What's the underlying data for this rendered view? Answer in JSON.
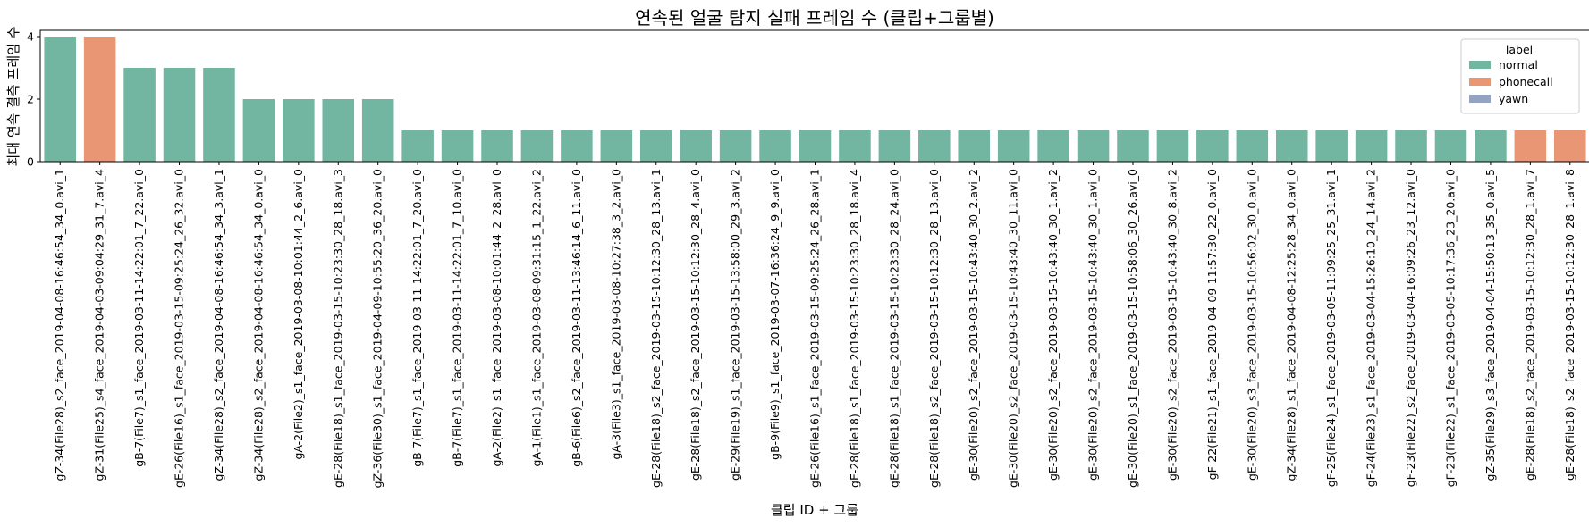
{
  "chart_data": {
    "type": "bar",
    "title": "연속된 얼굴 탐지 실패 프레임 수 (클립+그룹별)",
    "xlabel": "클립 ID + 그룹",
    "ylabel": "최대 연속 결측 프레임 수",
    "ylim": [
      0,
      4.2
    ],
    "yticks": [
      0,
      2,
      4
    ],
    "grid": false,
    "legend": {
      "title": "label",
      "placement": "top-right",
      "entries": [
        {
          "name": "normal",
          "color": "#72b6a1"
        },
        {
          "name": "phonecall",
          "color": "#e99675"
        },
        {
          "name": "yawn",
          "color": "#95a3c3"
        }
      ]
    },
    "categories": [
      "gZ-34(File28)_s2_face_2019-04-08-16:46:54_34_0.avi_1",
      "gZ-31(File25)_s4_face_2019-04-03-09:04:29_31_7.avi_4",
      "gB-7(File7)_s1_face_2019-03-11-14:22:01_7_22.avi_0",
      "gE-26(File16)_s1_face_2019-03-15-09:25:24_26_32.avi_0",
      "gZ-34(File28)_s2_face_2019-04-08-16:46:54_34_3.avi_1",
      "gZ-34(File28)_s2_face_2019-04-08-16:46:54_34_0.avi_0",
      "gA-2(File2)_s1_face_2019-03-08-10:01:44_2_6.avi_0",
      "gE-28(File18)_s1_face_2019-03-15-10:23:30_28_18.avi_3",
      "gZ-36(File30)_s1_face_2019-04-09-10:55:20_36_20.avi_0",
      "gB-7(File7)_s1_face_2019-03-11-14:22:01_7_20.avi_0",
      "gB-7(File7)_s1_face_2019-03-11-14:22:01_7_10.avi_0",
      "gA-2(File2)_s1_face_2019-03-08-10:01:44_2_28.avi_0",
      "gA-1(File1)_s1_face_2019-03-08-09:31:15_1_22.avi_2",
      "gB-6(File6)_s2_face_2019-03-11-13:46:14_6_11.avi_0",
      "gA-3(File3)_s1_face_2019-03-08-10:27:38_3_2.avi_0",
      "gE-28(File18)_s2_face_2019-03-15-10:12:30_28_13.avi_1",
      "gE-28(File18)_s2_face_2019-03-15-10:12:30_28_4.avi_0",
      "gE-29(File19)_s1_face_2019-03-15-13:58:00_29_3.avi_2",
      "gB-9(File9)_s1_face_2019-03-07-16:36:24_9_9.avi_0",
      "gE-26(File16)_s1_face_2019-03-15-09:25:24_26_28.avi_1",
      "gE-28(File18)_s1_face_2019-03-15-10:23:30_28_18.avi_4",
      "gE-28(File18)_s1_face_2019-03-15-10:23:30_28_24.avi_0",
      "gE-28(File18)_s2_face_2019-03-15-10:12:30_28_13.avi_0",
      "gE-30(File20)_s2_face_2019-03-15-10:43:40_30_2.avi_2",
      "gE-30(File20)_s2_face_2019-03-15-10:43:40_30_11.avi_0",
      "gE-30(File20)_s2_face_2019-03-15-10:43:40_30_1.avi_2",
      "gE-30(File20)_s2_face_2019-03-15-10:43:40_30_1.avi_0",
      "gE-30(File20)_s1_face_2019-03-15-10:58:06_30_26.avi_0",
      "gE-30(File20)_s2_face_2019-03-15-10:43:40_30_8.avi_2",
      "gF-22(File21)_s1_face_2019-04-09-11:57:30_22_0.avi_0",
      "gE-30(File20)_s3_face_2019-03-15-10:56:02_30_0.avi_0",
      "gZ-34(File28)_s1_face_2019-04-08-12:25:28_34_0.avi_0",
      "gF-25(File24)_s1_face_2019-03-05-11:09:25_25_31.avi_1",
      "gF-24(File23)_s1_face_2019-03-04-15:26:10_24_14.avi_2",
      "gF-23(File22)_s2_face_2019-03-04-16:09:26_23_12.avi_0",
      "gF-23(File22)_s1_face_2019-03-05-10:17:36_23_20.avi_0",
      "gZ-35(File29)_s3_face_2019-04-04-15:50:13_35_0.avi_5",
      "gE-28(File18)_s2_face_2019-03-15-10:12:30_28_1.avi_7",
      "gE-28(File18)_s2_face_2019-03-15-10:12:30_28_1.avi_8"
    ],
    "values": [
      4,
      4,
      3,
      3,
      3,
      2,
      2,
      2,
      2,
      1,
      1,
      1,
      1,
      1,
      1,
      1,
      1,
      1,
      1,
      1,
      1,
      1,
      1,
      1,
      1,
      1,
      1,
      1,
      1,
      1,
      1,
      1,
      1,
      1,
      1,
      1,
      1,
      1,
      1
    ],
    "labels": [
      "normal",
      "phonecall",
      "normal",
      "normal",
      "normal",
      "normal",
      "normal",
      "normal",
      "normal",
      "normal",
      "normal",
      "normal",
      "normal",
      "normal",
      "normal",
      "normal",
      "normal",
      "normal",
      "normal",
      "normal",
      "normal",
      "normal",
      "normal",
      "normal",
      "normal",
      "normal",
      "normal",
      "normal",
      "normal",
      "normal",
      "normal",
      "normal",
      "normal",
      "normal",
      "normal",
      "normal",
      "normal",
      "phonecall",
      "phonecall"
    ]
  }
}
